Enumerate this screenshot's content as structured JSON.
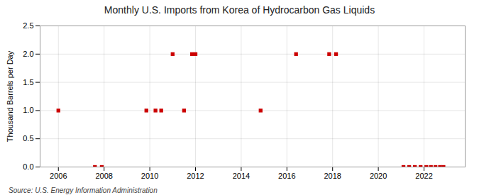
{
  "chart_data": {
    "type": "scatter",
    "title": "Monthly U.S. Imports from Korea of Hydrocarbon Gas Liquids",
    "ylabel": "Thousand Barrels per Day",
    "source": "Source: U.S. Energy Information Administration",
    "x": [
      2006.0,
      2007.6,
      2007.9,
      2009.85,
      2010.25,
      2010.5,
      2011.0,
      2011.5,
      2011.85,
      2012.0,
      2014.85,
      2016.4,
      2017.85,
      2018.15,
      2021.1,
      2021.35,
      2021.6,
      2021.85,
      2022.1,
      2022.3,
      2022.5,
      2022.7,
      2022.85
    ],
    "values": [
      1.0,
      0.0,
      0.0,
      1.0,
      1.0,
      1.0,
      2.0,
      1.0,
      2.0,
      2.0,
      1.0,
      2.0,
      2.0,
      2.0,
      0.0,
      0.0,
      0.0,
      0.0,
      0.0,
      0.0,
      0.0,
      0.0,
      0.0
    ],
    "color": "#cc0000",
    "marker": "square",
    "xlim": [
      2005.2,
      2023.8
    ],
    "xticks": [
      2006,
      2008,
      2010,
      2012,
      2014,
      2016,
      2018,
      2020,
      2022
    ],
    "ylim": [
      0,
      2.5
    ],
    "yticks": [
      {
        "value": 0,
        "label": "0.0"
      },
      0.5,
      {
        "value": 1,
        "label": "1.0"
      },
      1.5,
      {
        "value": 2,
        "label": "2.0"
      },
      2.5
    ],
    "grid": true
  }
}
